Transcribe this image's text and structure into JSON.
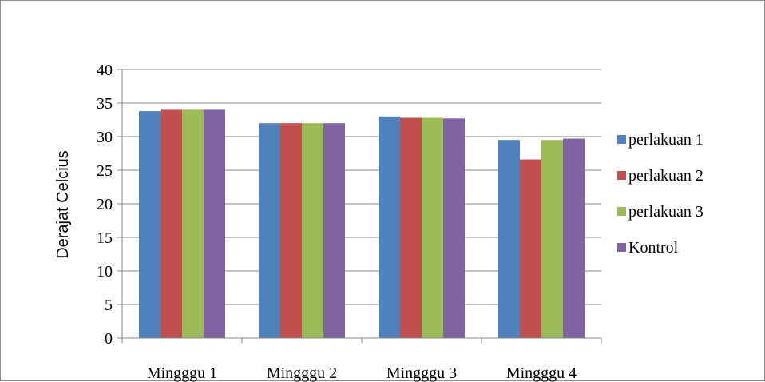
{
  "chart_data": {
    "type": "bar",
    "title": "",
    "xlabel": "",
    "ylabel": "Derajat Celcius",
    "ylim": [
      0,
      40
    ],
    "yticks": [
      0,
      5,
      10,
      15,
      20,
      25,
      30,
      35,
      40
    ],
    "grid": true,
    "legend_position": "right",
    "categories": [
      "Mingggu 1",
      "Mingggu 2",
      "Mingggu 3",
      "Mingggu 4"
    ],
    "series": [
      {
        "name": "perlakuan 1",
        "color": "#4f81bd",
        "values": [
          33.8,
          32,
          33,
          29.5
        ]
      },
      {
        "name": "perlakuan 2",
        "color": "#c0504d",
        "values": [
          34,
          32,
          32.8,
          26.6
        ]
      },
      {
        "name": "perlakuan 3",
        "color": "#9bbb59",
        "values": [
          34,
          32,
          32.8,
          29.5
        ]
      },
      {
        "name": "Kontrol",
        "color": "#8064a2",
        "values": [
          34,
          32,
          32.7,
          29.7
        ]
      }
    ]
  }
}
